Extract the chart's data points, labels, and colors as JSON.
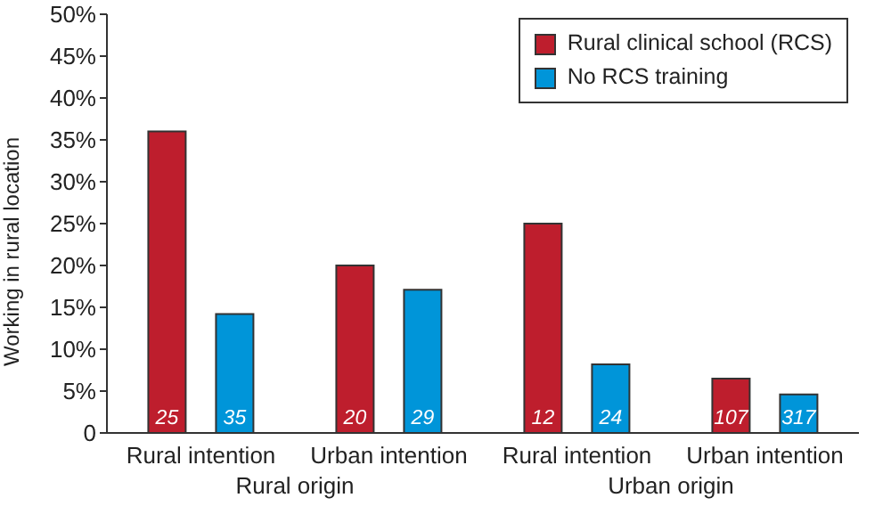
{
  "chart_data": {
    "type": "bar",
    "ylabel": "Working in rural location",
    "categories": [
      "Rural intention",
      "Urban intention",
      "Rural intention",
      "Urban intention"
    ],
    "series": [
      {
        "name": "Rural clinical school (RCS)",
        "color": "#be1e2d",
        "values": [
          36,
          20,
          25,
          6.5
        ]
      },
      {
        "name": "No RCS training",
        "color": "#0095d9",
        "values": [
          14.2,
          17.1,
          8.2,
          4.6
        ]
      }
    ],
    "ylim": [
      0,
      50
    ],
    "yticks": [
      {
        "value": 0,
        "label": "0"
      },
      {
        "value": 5,
        "label": "5%"
      },
      {
        "value": 10,
        "label": "10%"
      },
      {
        "value": 15,
        "label": "15%"
      },
      {
        "value": 20,
        "label": "20%"
      },
      {
        "value": 25,
        "label": "25%"
      },
      {
        "value": 30,
        "label": "30%"
      },
      {
        "value": 35,
        "label": "35%"
      },
      {
        "value": 40,
        "label": "40%"
      },
      {
        "value": 45,
        "label": "45%"
      },
      {
        "value": 50,
        "label": "50%"
      }
    ],
    "annotations": [
      "25",
      "35",
      "20",
      "29",
      "12",
      "24",
      "107",
      "317",
      "Rural origin",
      "Urban origin"
    ],
    "legend": "top right",
    "grid": false
  }
}
